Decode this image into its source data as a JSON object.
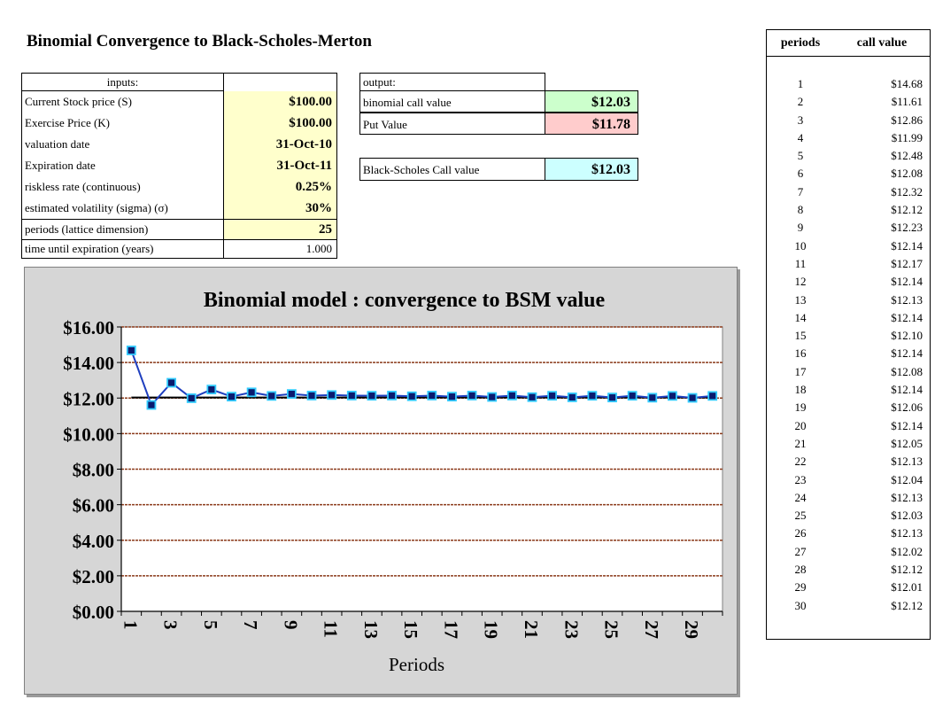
{
  "title": "Binomial Convergence to Black-Scholes-Merton",
  "inputs": {
    "header": "inputs:",
    "rows": [
      {
        "label": "Current Stock price (S)",
        "value": "$100.00"
      },
      {
        "label": "Exercise Price (K)",
        "value": "$100.00"
      },
      {
        "label": "valuation date",
        "value": "31-Oct-10"
      },
      {
        "label": "Expiration date",
        "value": "31-Oct-11"
      },
      {
        "label": "riskless rate (continuous)",
        "value": "0.25%"
      },
      {
        "label": "estimated volatility (sigma) (σ)",
        "value": "30%"
      }
    ],
    "periods_label": "periods (lattice dimension)",
    "periods_value": "25",
    "time_label": "time until expiration (years)",
    "time_value": "1.000"
  },
  "output": {
    "header": "output:",
    "binomial_label": "binomial call value",
    "binomial_value": "$12.03",
    "put_label": "Put Value",
    "put_value": "$11.78",
    "bs_label": "Black-Scholes Call value",
    "bs_value": "$12.03"
  },
  "colors": {
    "series": "#1f3fbf",
    "marker_fill": "#0a1a6e",
    "marker_border": "#33ccff",
    "gridline": "#8b3a1a",
    "bsm_line": "#000000",
    "input_bg": "#ffffcc",
    "green_bg": "#ccffcc",
    "pink_bg": "#ffcccc",
    "cyan_bg": "#ccffff"
  },
  "table": {
    "col_periods": "periods",
    "col_call": "call value",
    "rows": [
      {
        "p": "1",
        "v": "$14.68"
      },
      {
        "p": "2",
        "v": "$11.61"
      },
      {
        "p": "3",
        "v": "$12.86"
      },
      {
        "p": "4",
        "v": "$11.99"
      },
      {
        "p": "5",
        "v": "$12.48"
      },
      {
        "p": "6",
        "v": "$12.08"
      },
      {
        "p": "7",
        "v": "$12.32"
      },
      {
        "p": "8",
        "v": "$12.12"
      },
      {
        "p": "9",
        "v": "$12.23"
      },
      {
        "p": "10",
        "v": "$12.14"
      },
      {
        "p": "11",
        "v": "$12.17"
      },
      {
        "p": "12",
        "v": "$12.14"
      },
      {
        "p": "13",
        "v": "$12.13"
      },
      {
        "p": "14",
        "v": "$12.14"
      },
      {
        "p": "15",
        "v": "$12.10"
      },
      {
        "p": "16",
        "v": "$12.14"
      },
      {
        "p": "17",
        "v": "$12.08"
      },
      {
        "p": "18",
        "v": "$12.14"
      },
      {
        "p": "19",
        "v": "$12.06"
      },
      {
        "p": "20",
        "v": "$12.14"
      },
      {
        "p": "21",
        "v": "$12.05"
      },
      {
        "p": "22",
        "v": "$12.13"
      },
      {
        "p": "23",
        "v": "$12.04"
      },
      {
        "p": "24",
        "v": "$12.13"
      },
      {
        "p": "25",
        "v": "$12.03"
      },
      {
        "p": "26",
        "v": "$12.13"
      },
      {
        "p": "27",
        "v": "$12.02"
      },
      {
        "p": "28",
        "v": "$12.12"
      },
      {
        "p": "29",
        "v": "$12.01"
      },
      {
        "p": "30",
        "v": "$12.12"
      }
    ]
  },
  "chart_data": {
    "type": "line",
    "title": "Binomial model : convergence to BSM value",
    "xlabel": "Periods",
    "ylabel": "",
    "x": [
      1,
      2,
      3,
      4,
      5,
      6,
      7,
      8,
      9,
      10,
      11,
      12,
      13,
      14,
      15,
      16,
      17,
      18,
      19,
      20,
      21,
      22,
      23,
      24,
      25,
      26,
      27,
      28,
      29,
      30
    ],
    "x_tick_labels": [
      "1",
      "3",
      "5",
      "7",
      "9",
      "11",
      "13",
      "15",
      "17",
      "19",
      "21",
      "23",
      "25",
      "27",
      "29"
    ],
    "y_tick_labels": [
      "$0.00",
      "$2.00",
      "$4.00",
      "$6.00",
      "$8.00",
      "$10.00",
      "$12.00",
      "$14.00",
      "$16.00"
    ],
    "ylim": [
      0,
      16
    ],
    "grid": true,
    "legend": "none",
    "series": [
      {
        "values": [
          14.68,
          11.61,
          12.86,
          11.99,
          12.48,
          12.08,
          12.32,
          12.12,
          12.23,
          12.14,
          12.17,
          12.14,
          12.13,
          12.14,
          12.1,
          12.14,
          12.08,
          12.14,
          12.06,
          12.14,
          12.05,
          12.13,
          12.04,
          12.13,
          12.03,
          12.13,
          12.02,
          12.12,
          12.01,
          12.12
        ]
      },
      {
        "values": [
          12.03,
          12.03,
          12.03,
          12.03,
          12.03,
          12.03,
          12.03,
          12.03,
          12.03,
          12.03,
          12.03,
          12.03,
          12.03,
          12.03,
          12.03,
          12.03,
          12.03,
          12.03,
          12.03,
          12.03,
          12.03,
          12.03,
          12.03,
          12.03,
          12.03,
          12.03,
          12.03,
          12.03,
          12.03,
          12.03
        ]
      }
    ]
  }
}
